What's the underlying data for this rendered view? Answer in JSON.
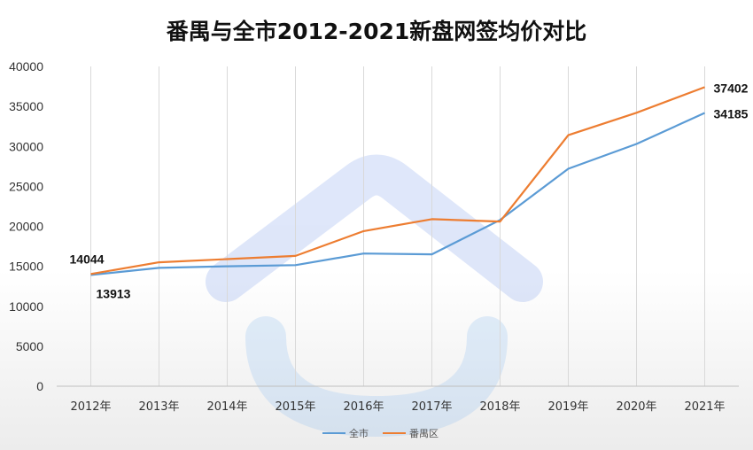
{
  "chart_data": {
    "type": "line",
    "title": "番禺与全市2012-2021新盘网签均价对比",
    "categories": [
      "2012年",
      "2013年",
      "2014年",
      "2015年",
      "2016年",
      "2017年",
      "2018年",
      "2019年",
      "2020年",
      "2021年"
    ],
    "series": [
      {
        "name": "全市",
        "color": "#5b9bd5",
        "values": [
          13913,
          14800,
          15000,
          15150,
          16600,
          16500,
          20800,
          27200,
          30300,
          34185
        ]
      },
      {
        "name": "番禺区",
        "color": "#ed7d31",
        "values": [
          14044,
          15500,
          15900,
          16300,
          19400,
          20900,
          20600,
          31400,
          34200,
          37402
        ]
      }
    ],
    "ylim": [
      0,
      40000
    ],
    "yticks": [
      0,
      5000,
      10000,
      15000,
      20000,
      25000,
      30000,
      35000,
      40000
    ],
    "data_labels": [
      {
        "series": 1,
        "index": 0,
        "text": "14044"
      },
      {
        "series": 0,
        "index": 0,
        "text": "13913"
      },
      {
        "series": 1,
        "index": 9,
        "text": "37402"
      },
      {
        "series": 0,
        "index": 9,
        "text": "34185"
      }
    ],
    "legend_position": "bottom",
    "grid": "vertical"
  }
}
